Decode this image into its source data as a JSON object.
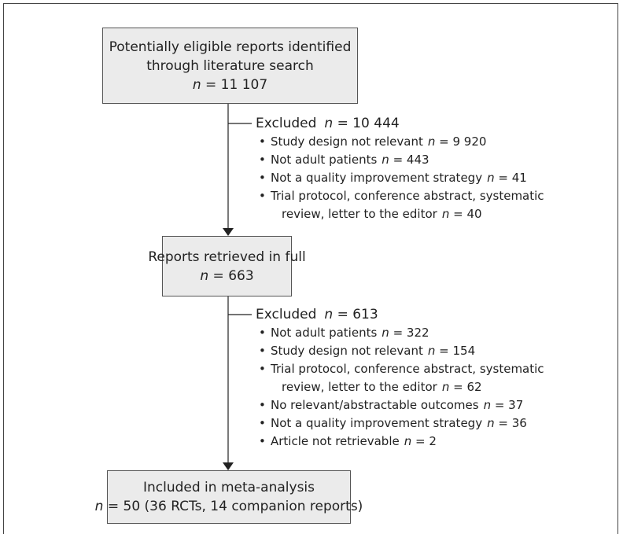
{
  "boxes": [
    {
      "lines": [
        "Potentially eligible reports identified",
        "through literature search",
        "n = 11 107"
      ]
    },
    {
      "lines": [
        "Reports retrieved in full",
        "n = 663"
      ]
    },
    {
      "lines": [
        "Included in meta-analysis",
        "n = 50 (36 RCTs, 14 companion reports)"
      ]
    }
  ],
  "exclusions": [
    {
      "heading": "Excluded",
      "count": "n = 10 444",
      "items": [
        {
          "lines": [
            "Study design not relevant"
          ],
          "count": "n = 9 920"
        },
        {
          "lines": [
            "Not adult patients"
          ],
          "count": "n = 443"
        },
        {
          "lines": [
            "Not a quality improvement strategy"
          ],
          "count": "n = 41"
        },
        {
          "lines": [
            "Trial protocol, conference abstract, systematic",
            "review, letter to the editor"
          ],
          "count": "n = 40"
        }
      ]
    },
    {
      "heading": "Excluded",
      "count": "n = 613",
      "items": [
        {
          "lines": [
            "Not adult patients"
          ],
          "count": "n = 322"
        },
        {
          "lines": [
            "Study design not relevant"
          ],
          "count": "n = 154"
        },
        {
          "lines": [
            "Trial protocol, conference abstract, systematic",
            "review, letter to the editor"
          ],
          "count": "n = 62"
        },
        {
          "lines": [
            "No relevant/abstractable outcomes"
          ],
          "count": "n = 37"
        },
        {
          "lines": [
            "Not a quality improvement strategy"
          ],
          "count": "n = 36"
        },
        {
          "lines": [
            "Article not retrievable"
          ],
          "count": "n = 2"
        }
      ]
    }
  ]
}
